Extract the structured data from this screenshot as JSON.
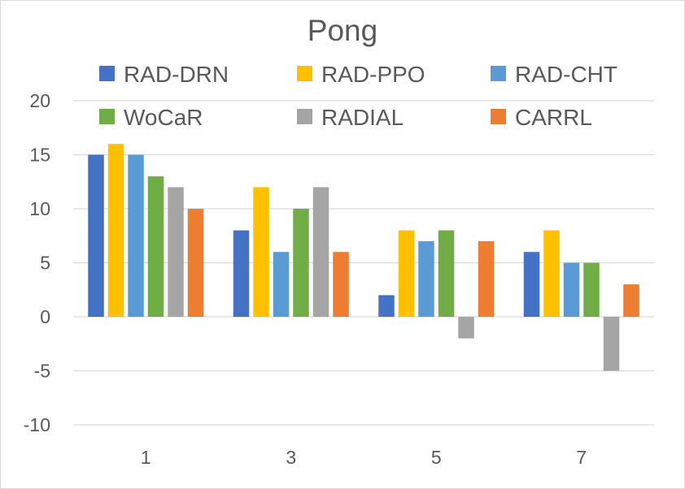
{
  "chart_data": {
    "type": "bar",
    "title": "Pong",
    "categories": [
      "1",
      "3",
      "5",
      "7"
    ],
    "series": [
      {
        "name": "RAD-DRN",
        "color": "#4472c4",
        "values": [
          15,
          8,
          2,
          6
        ]
      },
      {
        "name": "RAD-PPO",
        "color": "#ffc000",
        "values": [
          16,
          12,
          8,
          8
        ]
      },
      {
        "name": "RAD-CHT",
        "color": "#5b9bd5",
        "values": [
          15,
          6,
          7,
          5
        ]
      },
      {
        "name": "WoCaR",
        "color": "#70ad47",
        "values": [
          13,
          10,
          8,
          5
        ]
      },
      {
        "name": "RADIAL",
        "color": "#a5a5a5",
        "values": [
          12,
          12,
          -2,
          -5
        ]
      },
      {
        "name": "CARRL",
        "color": "#ed7d31",
        "values": [
          10,
          6,
          7,
          3
        ]
      }
    ],
    "ylim": [
      -10,
      20
    ],
    "yticks": [
      "-10",
      "-5",
      "0",
      "5",
      "10",
      "15",
      "20"
    ],
    "xlabel": "",
    "ylabel": "",
    "grid": true,
    "legend_position": "top"
  }
}
